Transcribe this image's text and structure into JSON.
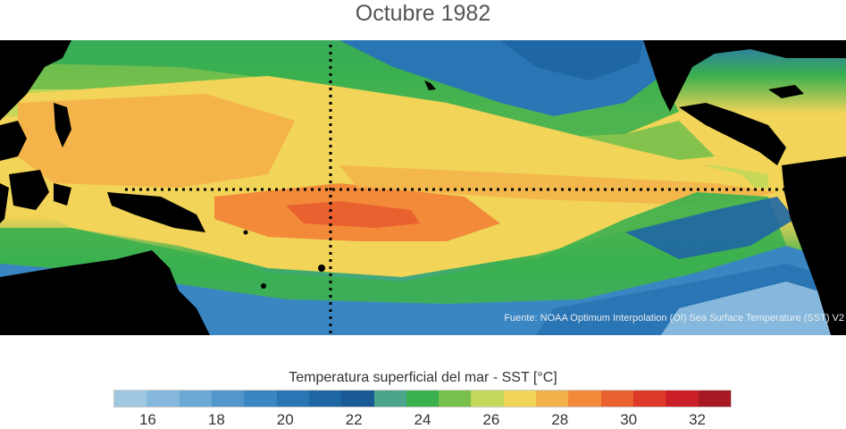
{
  "title": "Octubre 1982",
  "source": "Fuente: NOAA Optimum Interpolation (OI) Sea Surface Temperature (SST) V2",
  "colorbar": {
    "label": "Temperatura superficial del mar - SST  [°C]",
    "min": 15,
    "max": 33,
    "colors": [
      "#9ec7e2",
      "#85b8dc",
      "#6ba8d4",
      "#5197cc",
      "#3a86c2",
      "#2a75b4",
      "#1f66a4",
      "#1a5a94",
      "#4aa58a",
      "#3bb04f",
      "#77c04c",
      "#c2d85a",
      "#f1d458",
      "#f4b24a",
      "#f28a3a",
      "#e9612f",
      "#dd3a2a",
      "#cb1f28",
      "#a81a23"
    ],
    "ticks": [
      "16",
      "18",
      "20",
      "22",
      "24",
      "26",
      "28",
      "30",
      "32"
    ],
    "tick_values": [
      16,
      18,
      20,
      22,
      24,
      26,
      28,
      30,
      32
    ]
  },
  "map": {
    "land_color": "#000000",
    "guide_line_color": "#000000"
  }
}
